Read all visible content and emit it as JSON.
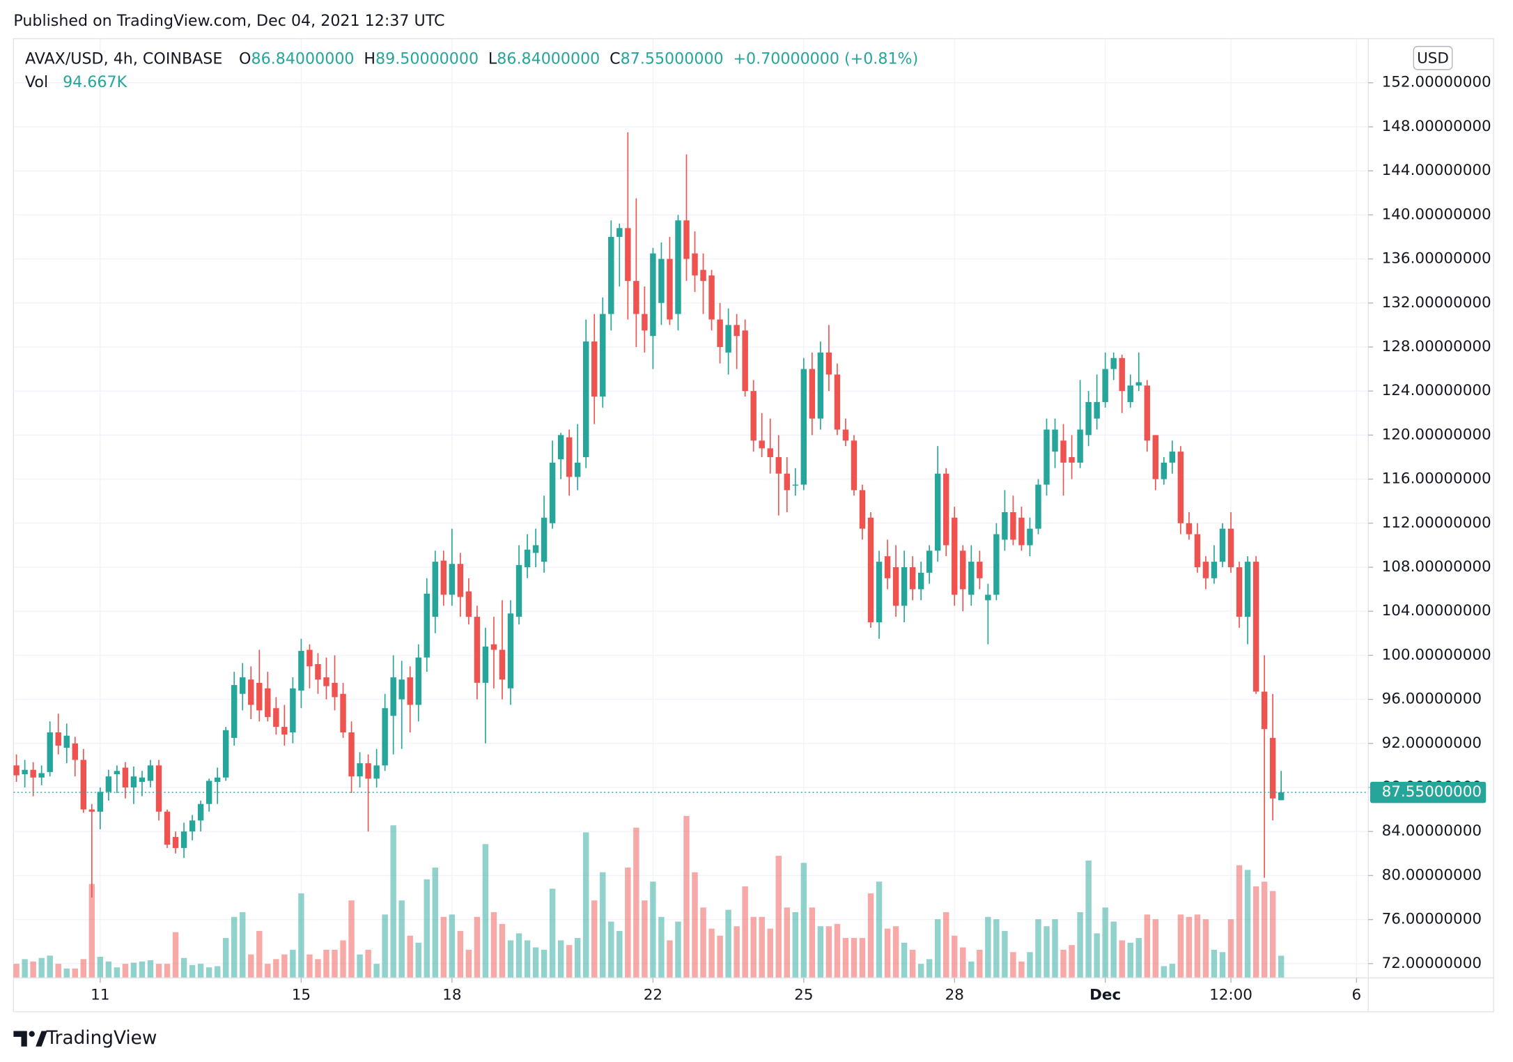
{
  "published": "Published on TradingView.com, Dec 04, 2021 12:37 UTC",
  "brand": "TradingView",
  "chart_data": {
    "type": "candlestick",
    "symbol": "AVAX/USD, 4h, COINBASE",
    "legend": [
      {
        "key": "O",
        "value": "86.84000000"
      },
      {
        "key": "H",
        "value": "89.50000000"
      },
      {
        "key": "L",
        "value": "86.84000000"
      },
      {
        "key": "C",
        "value": "87.55000000"
      }
    ],
    "change": "+0.70000000 (+0.81%)",
    "volume_label": "Vol",
    "volume_value": "94.667K",
    "currency": "USD",
    "last_price": {
      "value": 87.55,
      "label": "87.55000000"
    },
    "up_color": "#26a69a",
    "down_color": "#ef5350",
    "grid": true,
    "xlim": [
      -0.35,
      161.4
    ],
    "xticks": [
      {
        "value": 10,
        "label": "11"
      },
      {
        "value": 34,
        "label": "15"
      },
      {
        "value": 52,
        "label": "18"
      },
      {
        "value": 76,
        "label": "22"
      },
      {
        "value": 94,
        "label": "25"
      },
      {
        "value": 112,
        "label": "28"
      },
      {
        "value": 130,
        "label": "Dec"
      },
      {
        "value": 145,
        "label": "12:00"
      },
      {
        "value": 160,
        "label": "6"
      }
    ],
    "ylim": [
      70.7,
      156.0
    ],
    "yticks": [
      {
        "value": 72,
        "label": "72.00000000"
      },
      {
        "value": 76,
        "label": "76.00000000"
      },
      {
        "value": 80,
        "label": "80.00000000"
      },
      {
        "value": 84,
        "label": "84.00000000"
      },
      {
        "value": 88,
        "label": "88.00000000"
      },
      {
        "value": 92,
        "label": "92.00000000"
      },
      {
        "value": 96,
        "label": "96.00000000"
      },
      {
        "value": 100,
        "label": "100.00000000"
      },
      {
        "value": 104,
        "label": "104.00000000"
      },
      {
        "value": 108,
        "label": "108.00000000"
      },
      {
        "value": 112,
        "label": "112.00000000"
      },
      {
        "value": 116,
        "label": "116.00000000"
      },
      {
        "value": 120,
        "label": "120.00000000"
      },
      {
        "value": 124,
        "label": "124.00000000"
      },
      {
        "value": 128,
        "label": "128.00000000"
      },
      {
        "value": 132,
        "label": "132.00000000"
      },
      {
        "value": 136,
        "label": "136.00000000"
      },
      {
        "value": 140,
        "label": "140.00000000"
      },
      {
        "value": 144,
        "label": "144.00000000"
      },
      {
        "value": 148,
        "label": "148.00000000"
      },
      {
        "value": 152,
        "label": "152.00000000"
      }
    ],
    "vlim": [
      0,
      4000
    ],
    "candles": [
      [
        90.0,
        91.0,
        88.5,
        89.1,
        60
      ],
      [
        89.2,
        90.5,
        88.0,
        89.6,
        80
      ],
      [
        89.6,
        90.3,
        87.2,
        88.9,
        70
      ],
      [
        88.9,
        90.0,
        88.2,
        89.3,
        85
      ],
      [
        89.4,
        94.0,
        89.0,
        93.0,
        95
      ],
      [
        93.0,
        94.7,
        91.0,
        91.8,
        60
      ],
      [
        91.6,
        93.8,
        90.2,
        92.7,
        40
      ],
      [
        92.0,
        92.6,
        89.0,
        90.5,
        40
      ],
      [
        90.5,
        91.5,
        85.7,
        86.0,
        80
      ],
      [
        86.0,
        86.5,
        78.0,
        85.8,
        400
      ],
      [
        85.8,
        88.0,
        84.2,
        87.6,
        90
      ],
      [
        87.6,
        89.6,
        86.8,
        89.0,
        70
      ],
      [
        89.2,
        90.0,
        87.5,
        89.5,
        45
      ],
      [
        89.8,
        90.3,
        87.0,
        88.0,
        60
      ],
      [
        88.0,
        89.9,
        86.5,
        89.0,
        65
      ],
      [
        88.5,
        89.5,
        87.2,
        88.9,
        70
      ],
      [
        88.6,
        90.5,
        88.0,
        90.0,
        75
      ],
      [
        90.0,
        90.5,
        85.0,
        85.8,
        60
      ],
      [
        85.8,
        86.0,
        82.5,
        82.8,
        60
      ],
      [
        83.5,
        84.0,
        82.0,
        82.5,
        195
      ],
      [
        82.5,
        84.8,
        81.6,
        84.0,
        85
      ],
      [
        84.0,
        85.5,
        83.2,
        85.0,
        55
      ],
      [
        85.0,
        86.8,
        84.0,
        86.5,
        60
      ],
      [
        86.5,
        88.8,
        85.8,
        88.6,
        45
      ],
      [
        88.5,
        89.8,
        86.5,
        88.9,
        50
      ],
      [
        88.9,
        93.5,
        88.6,
        93.2,
        170
      ],
      [
        92.5,
        98.5,
        91.8,
        97.3,
        260
      ],
      [
        96.5,
        99.3,
        95.0,
        98.0,
        280
      ],
      [
        97.8,
        99.0,
        94.2,
        95.5,
        100
      ],
      [
        97.5,
        100.5,
        94.0,
        95.0,
        200
      ],
      [
        97.0,
        98.5,
        94.0,
        94.4,
        60
      ],
      [
        95.2,
        96.2,
        92.8,
        93.5,
        80
      ],
      [
        93.5,
        95.5,
        91.8,
        92.8,
        100
      ],
      [
        93.0,
        98.0,
        92.0,
        97.0,
        120
      ],
      [
        96.8,
        101.5,
        95.2,
        100.4,
        360
      ],
      [
        100.5,
        101.0,
        97.0,
        99.0,
        100
      ],
      [
        99.2,
        100.2,
        96.5,
        97.8,
        80
      ],
      [
        98.0,
        99.8,
        96.0,
        97.2,
        120
      ],
      [
        97.5,
        100.0,
        95.0,
        96.2,
        120
      ],
      [
        96.5,
        97.5,
        92.5,
        93.0,
        160
      ],
      [
        93.0,
        94.0,
        87.5,
        89.0,
        330
      ],
      [
        89.0,
        91.2,
        88.0,
        90.2,
        100
      ],
      [
        90.2,
        91.0,
        84.0,
        88.8,
        120
      ],
      [
        88.8,
        91.5,
        88.0,
        90.0,
        60
      ],
      [
        90.0,
        96.5,
        89.5,
        95.2,
        270
      ],
      [
        94.5,
        100.0,
        91.0,
        98.0,
        650
      ],
      [
        96.0,
        99.5,
        91.5,
        97.8,
        330
      ],
      [
        98.0,
        99.0,
        93.0,
        95.5,
        180
      ],
      [
        95.5,
        101.0,
        94.0,
        99.8,
        150
      ],
      [
        99.8,
        107.0,
        98.5,
        105.6,
        420
      ],
      [
        103.5,
        109.5,
        102.0,
        108.5,
        470
      ],
      [
        108.6,
        109.5,
        104.5,
        105.5,
        260
      ],
      [
        105.5,
        111.5,
        104.5,
        108.3,
        270
      ],
      [
        108.3,
        109.3,
        103.5,
        105.3,
        200
      ],
      [
        105.8,
        107.0,
        102.8,
        103.5,
        120
      ],
      [
        103.5,
        104.5,
        96.0,
        97.5,
        260
      ],
      [
        97.5,
        102.5,
        92.0,
        100.8,
        570
      ],
      [
        101.0,
        103.5,
        97.0,
        100.5,
        280
      ],
      [
        100.5,
        105.0,
        96.0,
        97.8,
        230
      ],
      [
        97.0,
        105.0,
        95.5,
        103.8,
        160
      ],
      [
        103.5,
        110.0,
        102.8,
        108.2,
        190
      ],
      [
        108.0,
        111.0,
        107.0,
        109.6,
        160
      ],
      [
        109.3,
        111.5,
        108.0,
        110.0,
        130
      ],
      [
        108.5,
        114.5,
        107.5,
        112.5,
        120
      ],
      [
        112.0,
        119.5,
        111.5,
        117.5,
        380
      ],
      [
        117.8,
        120.2,
        116.0,
        120.0,
        160
      ],
      [
        119.8,
        120.5,
        114.5,
        116.2,
        140
      ],
      [
        116.2,
        121.0,
        115.0,
        117.5,
        170
      ],
      [
        118.0,
        130.5,
        117.0,
        128.5,
        620
      ],
      [
        128.5,
        131.0,
        121.0,
        123.5,
        330
      ],
      [
        123.5,
        132.5,
        122.5,
        131.0,
        450
      ],
      [
        131.0,
        139.5,
        129.5,
        138.0,
        240
      ],
      [
        138.0,
        139.2,
        133.5,
        138.8,
        200
      ],
      [
        138.8,
        147.5,
        130.5,
        134.0,
        470
      ],
      [
        134.0,
        141.5,
        128.0,
        131.0,
        640
      ],
      [
        131.0,
        133.5,
        127.5,
        129.5,
        330
      ],
      [
        129.0,
        137.0,
        126.0,
        136.5,
        410
      ],
      [
        132.0,
        137.5,
        130.0,
        136.0,
        260
      ],
      [
        136.0,
        138.0,
        130.0,
        130.5,
        160
      ],
      [
        131.0,
        140.0,
        129.5,
        139.5,
        240
      ],
      [
        139.5,
        145.5,
        134.0,
        136.0,
        690
      ],
      [
        136.5,
        138.5,
        133.0,
        134.5,
        450
      ],
      [
        135.0,
        136.5,
        131.0,
        134.0,
        300
      ],
      [
        134.5,
        135.0,
        129.5,
        130.5,
        210
      ],
      [
        130.5,
        132.0,
        126.5,
        128.0,
        180
      ],
      [
        127.5,
        131.5,
        125.5,
        130.0,
        290
      ],
      [
        130.0,
        131.0,
        126.0,
        129.0,
        220
      ],
      [
        129.5,
        130.5,
        123.5,
        124.0,
        390
      ],
      [
        124.0,
        125.0,
        118.5,
        119.5,
        260
      ],
      [
        119.5,
        122.0,
        118.0,
        118.8,
        260
      ],
      [
        118.8,
        121.5,
        116.5,
        118.0,
        210
      ],
      [
        118.0,
        120.0,
        112.7,
        116.5,
        520
      ],
      [
        116.5,
        118.0,
        113.0,
        115.0,
        300
      ],
      [
        115.5,
        117.0,
        114.5,
        115.5,
        280
      ],
      [
        115.5,
        127.0,
        115.0,
        126.0,
        490
      ],
      [
        126.0,
        127.5,
        120.0,
        121.5,
        300
      ],
      [
        121.5,
        128.5,
        120.5,
        127.5,
        220
      ],
      [
        127.5,
        130.0,
        124.0,
        125.5,
        220
      ],
      [
        125.5,
        126.5,
        120.0,
        120.5,
        230
      ],
      [
        120.5,
        121.5,
        119.0,
        119.5,
        170
      ],
      [
        119.5,
        120.0,
        114.5,
        115.0,
        170
      ],
      [
        115.0,
        115.5,
        110.5,
        111.5,
        170
      ],
      [
        112.5,
        113.0,
        102.5,
        103.0,
        360
      ],
      [
        103.0,
        109.5,
        101.5,
        108.5,
        410
      ],
      [
        109.0,
        110.5,
        106.0,
        107.0,
        210
      ],
      [
        108.0,
        110.0,
        103.5,
        104.5,
        220
      ],
      [
        104.5,
        109.5,
        103.0,
        108.0,
        150
      ],
      [
        108.0,
        109.0,
        105.0,
        106.0,
        120
      ],
      [
        106.0,
        108.5,
        105.0,
        107.5,
        60
      ],
      [
        107.5,
        110.0,
        106.5,
        109.5,
        80
      ],
      [
        109.5,
        119.0,
        108.5,
        116.5,
        250
      ],
      [
        116.5,
        117.0,
        109.0,
        110.0,
        280
      ],
      [
        112.5,
        113.5,
        104.5,
        105.5,
        180
      ],
      [
        109.5,
        110.0,
        104.0,
        106.0,
        130
      ],
      [
        105.5,
        110.0,
        104.5,
        108.5,
        70
      ],
      [
        108.5,
        109.5,
        106.0,
        107.0,
        120
      ],
      [
        105.0,
        106.5,
        101.0,
        105.5,
        260
      ],
      [
        105.5,
        112.0,
        105.0,
        111.0,
        250
      ],
      [
        110.5,
        115.0,
        109.5,
        113.0,
        200
      ],
      [
        113.0,
        114.5,
        110.0,
        110.5,
        110
      ],
      [
        112.5,
        113.5,
        109.5,
        110.0,
        70
      ],
      [
        110.0,
        112.5,
        109.0,
        111.5,
        110
      ],
      [
        111.5,
        116.0,
        111.0,
        115.5,
        250
      ],
      [
        115.5,
        121.5,
        114.5,
        120.5,
        220
      ],
      [
        118.5,
        121.5,
        117.0,
        120.5,
        250
      ],
      [
        119.5,
        121.0,
        114.5,
        117.5,
        120
      ],
      [
        118.0,
        120.0,
        116.0,
        117.5,
        140
      ],
      [
        117.5,
        125.0,
        117.0,
        120.5,
        280
      ],
      [
        120.0,
        124.0,
        119.0,
        123.0,
        500
      ],
      [
        121.5,
        125.5,
        120.5,
        123.0,
        190
      ],
      [
        123.0,
        127.5,
        122.5,
        126.0,
        300
      ],
      [
        126.0,
        127.5,
        125.0,
        127.0,
        240
      ],
      [
        127.0,
        127.3,
        122.0,
        124.0,
        160
      ],
      [
        123.0,
        125.5,
        122.5,
        124.5,
        150
      ],
      [
        124.5,
        127.5,
        124.0,
        124.8,
        170
      ],
      [
        124.5,
        125.0,
        118.5,
        119.5,
        270
      ],
      [
        120.0,
        120.0,
        115.0,
        116.0,
        250
      ],
      [
        116.0,
        118.0,
        115.5,
        117.5,
        50
      ],
      [
        117.5,
        119.5,
        116.5,
        118.5,
        60
      ],
      [
        118.5,
        119.0,
        111.0,
        112.0,
        270
      ],
      [
        112.0,
        113.0,
        110.5,
        111.0,
        260
      ],
      [
        111.0,
        112.0,
        107.5,
        108.0,
        270
      ],
      [
        108.5,
        109.0,
        106.0,
        107.0,
        250
      ],
      [
        107.0,
        110.0,
        106.5,
        108.5,
        120
      ],
      [
        108.5,
        112.0,
        108.0,
        111.5,
        110
      ],
      [
        111.5,
        113.0,
        107.5,
        108.0,
        250
      ],
      [
        108.0,
        108.5,
        102.5,
        103.5,
        480
      ],
      [
        103.5,
        109.0,
        101.0,
        108.5,
        460
      ],
      [
        108.5,
        109.0,
        96.5,
        96.7,
        390
      ],
      [
        96.7,
        100.0,
        79.8,
        93.3,
        410
      ],
      [
        92.5,
        96.5,
        85.0,
        87.0,
        370
      ],
      [
        86.84,
        89.5,
        86.84,
        87.55,
        94.667
      ]
    ]
  }
}
